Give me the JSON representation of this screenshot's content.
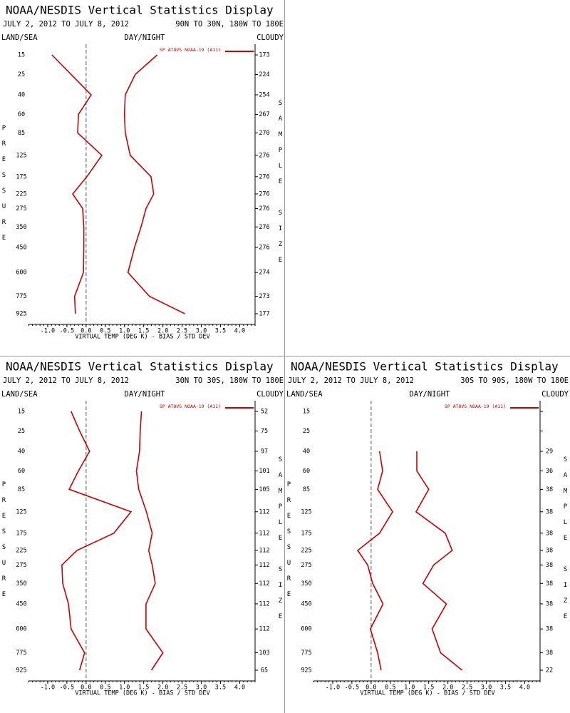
{
  "chart_data": [
    {
      "type": "line",
      "title": "NOAA/NESDIS Vertical Statistics Display",
      "date_range": "JULY 2, 2012 TO JULY 8, 2012",
      "region": "90N TO 30N, 180W TO 180E",
      "land_sea": "LAND/SEA",
      "day_night": "DAY/NIGHT",
      "cloud": "CLOUDY",
      "legend": "SP ATOVS NOAA-19 (A11)",
      "ylabel": "PRESSURE",
      "y2label": "SAMPLE SIZE",
      "xlabel": "VIRTUAL TEMP (DEG K) - BIAS / STD DEV",
      "categories": [
        15,
        25,
        40,
        60,
        85,
        125,
        175,
        225,
        275,
        350,
        450,
        600,
        775,
        925
      ],
      "sample_sizes": [
        173,
        224,
        254,
        267,
        270,
        276,
        276,
        276,
        276,
        276,
        276,
        274,
        273,
        177
      ],
      "series": [
        {
          "color": "#cc0000",
          "values": [
            -0.89,
            -0.39,
            0.13,
            -0.2,
            -0.22,
            0.41,
            0.02,
            -0.35,
            -0.09,
            -0.06,
            -0.06,
            -0.07,
            -0.3,
            -0.28
          ]
        },
        {
          "color": "#cc0000",
          "values": [
            1.85,
            1.28,
            1.02,
            1.0,
            1.02,
            1.15,
            1.69,
            1.76,
            1.56,
            1.43,
            1.26,
            1.09,
            1.65,
            2.57
          ]
        }
      ],
      "xlim": [
        -1.5,
        4.4
      ],
      "xticks": [
        {
          "value": -1,
          "label": "-1.0"
        },
        -0.5,
        {
          "value": 0,
          "label": "0.0"
        },
        0.5,
        {
          "value": 1,
          "label": "1.0"
        },
        1.5,
        {
          "value": 2,
          "label": "2.0"
        },
        2.5,
        {
          "value": 3,
          "label": "3.0"
        },
        3.5,
        {
          "value": 4,
          "label": "4.0"
        }
      ]
    },
    {
      "type": "line",
      "title": "NOAA/NESDIS Vertical Statistics Display",
      "date_range": "JULY 2, 2012 TO JULY 8, 2012",
      "region": "30N TO 30S, 180W TO 180E",
      "land_sea": "LAND/SEA",
      "day_night": "DAY/NIGHT",
      "cloud": "CLOUDY",
      "legend": "SP ATOVS NOAA-19 (A11)",
      "ylabel": "PRESSURE",
      "y2label": "SAMPLE SIZE",
      "xlabel": "VIRTUAL TEMP (DEG K) - BIAS / STD DEV",
      "categories": [
        15,
        25,
        40,
        60,
        85,
        125,
        175,
        225,
        275,
        350,
        450,
        600,
        775,
        925
      ],
      "sample_sizes": [
        52,
        75,
        97,
        101,
        105,
        112,
        112,
        112,
        112,
        112,
        112,
        112,
        103,
        65
      ],
      "series": [
        {
          "color": "#cc0000",
          "values": [
            -0.39,
            -0.17,
            0.09,
            -0.2,
            -0.44,
            1.17,
            0.72,
            -0.24,
            -0.63,
            -0.61,
            -0.46,
            -0.39,
            -0.04,
            -0.17
          ]
        },
        {
          "color": "#cc0000",
          "values": [
            1.44,
            1.41,
            1.39,
            1.31,
            1.37,
            1.57,
            1.72,
            1.63,
            1.72,
            1.8,
            1.56,
            1.56,
            2.0,
            1.7
          ]
        }
      ],
      "xlim": [
        -1.5,
        4.4
      ],
      "xticks": [
        {
          "value": -1,
          "label": "-1.0"
        },
        -0.5,
        {
          "value": 0,
          "label": "0.0"
        },
        0.5,
        {
          "value": 1,
          "label": "1.0"
        },
        1.5,
        {
          "value": 2,
          "label": "2.0"
        },
        2.5,
        {
          "value": 3,
          "label": "3.0"
        },
        3.5,
        {
          "value": 4,
          "label": "4.0"
        }
      ]
    },
    {
      "type": "line",
      "title": "NOAA/NESDIS Vertical Statistics Display",
      "date_range": "JULY 2, 2012 TO JULY 8, 2012",
      "region": "30S TO 90S, 180W TO 180E",
      "land_sea": "LAND/SEA",
      "day_night": "DAY/NIGHT",
      "cloud": "CLOUDY",
      "legend": "SP ATOVS NOAA-19 (A11)",
      "ylabel": "PRESSURE",
      "y2label": "SAMPLE SIZE",
      "xlabel": "VIRTUAL TEMP (DEG K) - BIAS / STD DEV",
      "categories": [
        15,
        25,
        40,
        60,
        85,
        125,
        175,
        225,
        275,
        350,
        450,
        600,
        775,
        925
      ],
      "sample_sizes": [
        null,
        null,
        29,
        36,
        38,
        38,
        38,
        38,
        38,
        38,
        38,
        38,
        38,
        22
      ],
      "series": [
        {
          "color": "#cc0000",
          "values": [
            null,
            null,
            0.22,
            0.3,
            0.17,
            0.56,
            0.22,
            -0.35,
            -0.09,
            0.04,
            0.31,
            -0.02,
            0.17,
            0.26
          ]
        },
        {
          "color": "#cc0000",
          "values": [
            null,
            null,
            1.19,
            1.19,
            1.5,
            1.17,
            1.93,
            2.11,
            1.63,
            1.35,
            1.96,
            1.59,
            1.81,
            2.37
          ]
        }
      ],
      "xlim": [
        -1.5,
        4.4
      ],
      "xticks": [
        {
          "value": -1,
          "label": "-1.0"
        },
        -0.5,
        {
          "value": 0,
          "label": "0.0"
        },
        0.5,
        {
          "value": 1,
          "label": "1.0"
        },
        1.5,
        {
          "value": 2,
          "label": "2.0"
        },
        2.5,
        {
          "value": 3,
          "label": "3.0"
        },
        3.5,
        {
          "value": 4,
          "label": "4.0"
        }
      ]
    }
  ]
}
